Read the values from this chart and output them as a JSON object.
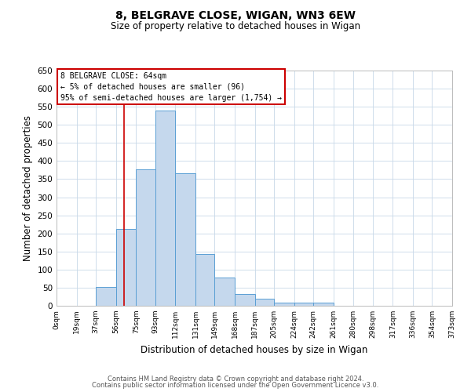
{
  "title": "8, BELGRAVE CLOSE, WIGAN, WN3 6EW",
  "subtitle": "Size of property relative to detached houses in Wigan",
  "xlabel": "Distribution of detached houses by size in Wigan",
  "ylabel": "Number of detached properties",
  "bar_color": "#c5d8ed",
  "bar_edge_color": "#5a9fd4",
  "background_color": "#ffffff",
  "grid_color": "#c8d8e8",
  "vline_x": 64,
  "vline_color": "#cc0000",
  "bin_edges": [
    0,
    19,
    37,
    56,
    75,
    93,
    112,
    131,
    149,
    168,
    187,
    205,
    224,
    242,
    261,
    280,
    298,
    317,
    336,
    354,
    373
  ],
  "bin_labels": [
    "0sqm",
    "19sqm",
    "37sqm",
    "56sqm",
    "75sqm",
    "93sqm",
    "112sqm",
    "131sqm",
    "149sqm",
    "168sqm",
    "187sqm",
    "205sqm",
    "224sqm",
    "242sqm",
    "261sqm",
    "280sqm",
    "298sqm",
    "317sqm",
    "336sqm",
    "354sqm",
    "373sqm"
  ],
  "bar_heights": [
    0,
    0,
    52,
    212,
    376,
    540,
    367,
    143,
    77,
    33,
    20,
    9,
    8,
    8,
    0,
    1,
    0,
    1,
    0,
    0
  ],
  "ylim": [
    0,
    650
  ],
  "yticks": [
    0,
    50,
    100,
    150,
    200,
    250,
    300,
    350,
    400,
    450,
    500,
    550,
    600,
    650
  ],
  "annotation_box_text": "8 BELGRAVE CLOSE: 64sqm\n← 5% of detached houses are smaller (96)\n95% of semi-detached houses are larger (1,754) →",
  "annotation_box_edge_color": "#cc0000",
  "footer_line1": "Contains HM Land Registry data © Crown copyright and database right 2024.",
  "footer_line2": "Contains public sector information licensed under the Open Government Licence v3.0.",
  "figsize": [
    6.0,
    5.0
  ],
  "dpi": 100
}
